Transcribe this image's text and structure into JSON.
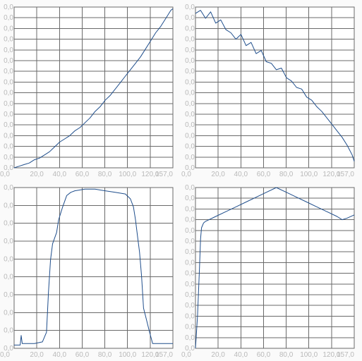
{
  "chart_data": [
    {
      "type": "line",
      "x_ticks": [
        "0,0",
        "20,0",
        "40,0",
        "60,0",
        "80,0",
        "100,0",
        "120,0",
        "157,0"
      ],
      "y_ticks": [
        "0,0",
        "0,0",
        "0,0",
        "0,0",
        "0,0",
        "0,0",
        "0,0",
        "0,0",
        "0,0",
        "0,0",
        "0,0",
        "0,0",
        "0,0",
        "0,0",
        "0,0",
        "0,0"
      ],
      "xlim": [
        0,
        157
      ],
      "ylim": [
        0,
        1
      ],
      "grid": true,
      "series": [
        {
          "color": "#1f4e8c",
          "x": [
            0,
            5,
            10,
            15,
            20,
            25,
            30,
            35,
            40,
            45,
            50,
            55,
            60,
            65,
            70,
            75,
            80,
            85,
            90,
            95,
            100,
            105,
            110,
            115,
            120,
            125,
            130,
            135,
            140,
            145,
            150,
            155,
            157
          ],
          "y": [
            0.0,
            0.01,
            0.02,
            0.03,
            0.05,
            0.06,
            0.08,
            0.1,
            0.13,
            0.16,
            0.18,
            0.2,
            0.23,
            0.25,
            0.28,
            0.31,
            0.35,
            0.38,
            0.42,
            0.45,
            0.49,
            0.53,
            0.57,
            0.61,
            0.65,
            0.69,
            0.74,
            0.79,
            0.84,
            0.88,
            0.93,
            0.98,
            0.99
          ]
        }
      ]
    },
    {
      "type": "line",
      "x_ticks": [
        "0,0",
        "20,0",
        "40,0",
        "60,0",
        "80,0",
        "100,0",
        "120,0",
        "157,0"
      ],
      "y_ticks": [
        "0,0",
        "0,0",
        "0,0",
        "0,0",
        "0,0",
        "0,0",
        "0,0",
        "0,0",
        "0,0",
        "0,0",
        "0,0",
        "0,0",
        "0,0",
        "0,0",
        "0,0",
        "0,0"
      ],
      "xlim": [
        0,
        157
      ],
      "ylim": [
        0,
        1
      ],
      "grid": true,
      "series": [
        {
          "color": "#1f4e8c",
          "x": [
            0,
            5,
            10,
            15,
            20,
            25,
            30,
            35,
            40,
            45,
            50,
            55,
            60,
            65,
            70,
            75,
            80,
            85,
            90,
            95,
            100,
            105,
            110,
            115,
            120,
            125,
            130,
            135,
            140,
            145,
            150,
            155,
            157
          ],
          "y": [
            0.96,
            0.98,
            0.93,
            0.97,
            0.9,
            0.92,
            0.86,
            0.84,
            0.8,
            0.83,
            0.76,
            0.78,
            0.71,
            0.73,
            0.66,
            0.65,
            0.61,
            0.62,
            0.56,
            0.54,
            0.5,
            0.49,
            0.44,
            0.42,
            0.38,
            0.35,
            0.31,
            0.27,
            0.23,
            0.19,
            0.14,
            0.08,
            0.04
          ]
        }
      ]
    },
    {
      "type": "line",
      "x_ticks": [
        "0,0",
        "20,0",
        "40,0",
        "60,0",
        "80,0",
        "100,0",
        "120,0",
        "157,0"
      ],
      "y_ticks": [
        "0,0",
        "0,0",
        "0,0",
        "0,0",
        "0,0",
        "0,0",
        "0,0",
        "0,0",
        "0,0",
        "0,0"
      ],
      "xlim": [
        0,
        157
      ],
      "ylim": [
        0,
        1
      ],
      "grid": true,
      "series": [
        {
          "color": "#1f4e8c",
          "x": [
            0,
            6,
            7,
            8,
            12,
            20,
            28,
            32,
            34,
            36,
            38,
            42,
            44,
            48,
            52,
            56,
            60,
            70,
            80,
            90,
            100,
            110,
            115,
            118,
            120,
            122,
            124,
            126,
            128,
            130,
            134,
            137,
            140,
            150,
            157
          ],
          "y": [
            0.02,
            0.02,
            0.08,
            0.03,
            0.03,
            0.03,
            0.04,
            0.1,
            0.35,
            0.55,
            0.65,
            0.72,
            0.8,
            0.88,
            0.95,
            0.97,
            0.98,
            0.99,
            0.99,
            0.98,
            0.97,
            0.96,
            0.93,
            0.88,
            0.8,
            0.7,
            0.6,
            0.45,
            0.25,
            0.2,
            0.1,
            0.03,
            0.03,
            0.03,
            0.03
          ]
        }
      ]
    },
    {
      "type": "line",
      "x_ticks": [
        "0,0",
        "20,0",
        "40,0",
        "60,0",
        "80,0",
        "100,0",
        "120,0",
        "157,0"
      ],
      "y_ticks": [
        "0,0",
        "0,0",
        "0,0",
        "0,0",
        "0,0",
        "0,0",
        "0,0",
        "0,0",
        "0,0",
        "0,0",
        "0,0",
        "0,0",
        "0,0",
        "0,0",
        "0,0",
        "0,0"
      ],
      "xlim": [
        0,
        157
      ],
      "ylim": [
        0,
        1
      ],
      "grid": true,
      "series": [
        {
          "color": "#1f4e8c",
          "x": [
            0,
            2,
            4,
            5,
            6,
            8,
            10,
            20,
            30,
            40,
            50,
            60,
            70,
            80,
            90,
            100,
            110,
            120,
            130,
            140,
            145,
            150,
            157
          ],
          "y": [
            0.0,
            0.2,
            0.5,
            0.68,
            0.75,
            0.78,
            0.79,
            0.82,
            0.85,
            0.88,
            0.91,
            0.94,
            0.97,
            1.0,
            0.97,
            0.94,
            0.91,
            0.88,
            0.85,
            0.82,
            0.8,
            0.81,
            0.83
          ]
        }
      ]
    }
  ]
}
